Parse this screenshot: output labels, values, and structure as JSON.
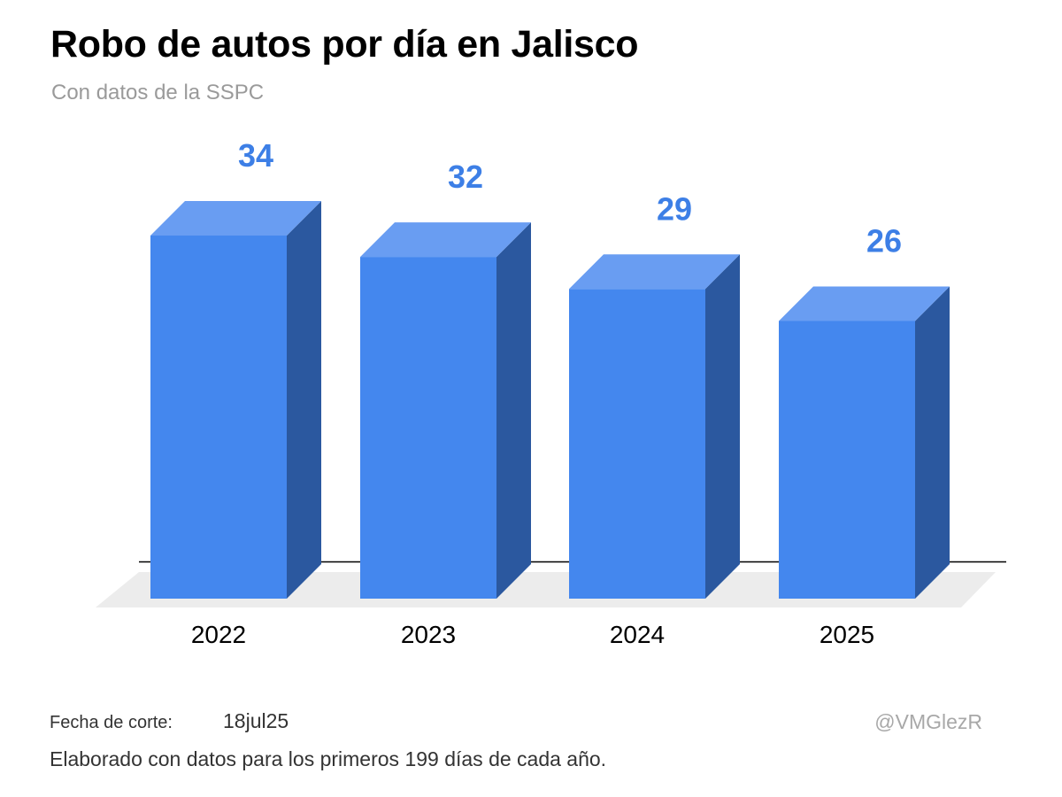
{
  "chart_data": {
    "type": "bar",
    "title": "Robo de autos por día en Jalisco",
    "subtitle": "Con datos de la SSPC",
    "categories": [
      "2022",
      "2023",
      "2024",
      "2025"
    ],
    "values": [
      34,
      32,
      29,
      26
    ],
    "xlabel": "",
    "ylabel": "",
    "ylim": [
      0,
      34
    ],
    "grid": false,
    "legend": "none",
    "style": "3d-columns"
  },
  "colors": {
    "bar_front": "#4487ee",
    "bar_top": "#699df2",
    "bar_side": "#2b589f",
    "value_label": "#3d7fe6",
    "floor": "#ececec",
    "baseline": "#000000"
  },
  "footer": {
    "cutoff_label": "Fecha de corte:",
    "cutoff_date": "18jul25",
    "credit": "@VMGlezR",
    "note": "Elaborado con datos para los primeros 199 días de cada año."
  }
}
